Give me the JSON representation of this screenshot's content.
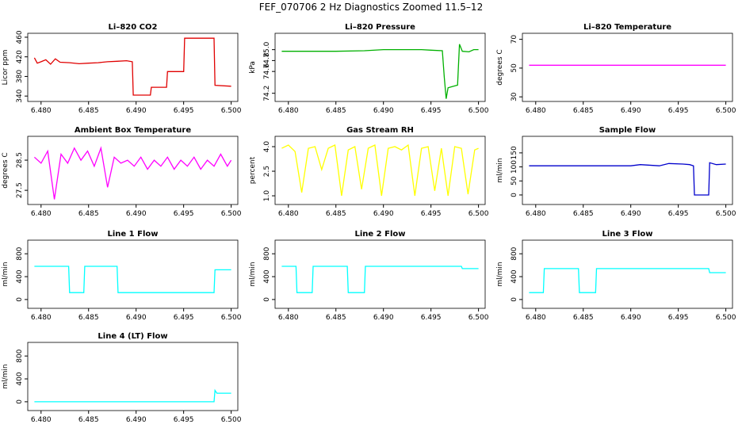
{
  "title": "FEF_070706  2 Hz Diagnostics Zoomed 11.5–12",
  "chart_data": [
    {
      "type": "line",
      "title": "Li–820 CO2",
      "y_label": "Licor ppm",
      "xlim": [
        6.4786,
        6.5007
      ],
      "ylim": [
        329,
        468
      ],
      "xticks": [
        {
          "value": 6.48,
          "label": "6.480"
        },
        {
          "value": 6.485,
          "label": "6.485"
        },
        {
          "value": 6.49,
          "label": "6.490"
        },
        {
          "value": 6.495,
          "label": "6.495"
        },
        {
          "value": 6.5,
          "label": "6.500"
        }
      ],
      "yticks": [
        340,
        380,
        420,
        460
      ],
      "x": [
        6.4793,
        6.4796,
        6.48,
        6.4805,
        6.481,
        6.4815,
        6.482,
        6.483,
        6.484,
        6.485,
        6.486,
        6.487,
        6.488,
        6.489,
        6.4896,
        6.4897,
        6.4915,
        6.4916,
        6.4932,
        6.4933,
        6.495,
        6.4951,
        6.4982,
        6.4983,
        6.5
      ],
      "series": [
        {
          "color": "#e00000",
          "values": [
            418,
            407,
            410,
            414,
            405,
            416,
            409,
            408,
            406,
            407,
            408,
            410,
            411,
            412,
            410,
            342,
            342,
            358,
            358,
            390,
            390,
            458,
            458,
            362,
            360
          ]
        }
      ]
    },
    {
      "type": "line",
      "title": "Li–820 Pressure",
      "y_label": "kPa",
      "xlim": [
        6.4786,
        6.5007
      ],
      "ylim": [
        74.05,
        75.3
      ],
      "xticks": [
        {
          "value": 6.48,
          "label": "6.480"
        },
        {
          "value": 6.485,
          "label": "6.485"
        },
        {
          "value": 6.49,
          "label": "6.490"
        },
        {
          "value": 6.495,
          "label": "6.495"
        },
        {
          "value": 6.5,
          "label": "6.500"
        }
      ],
      "yticks": [
        74.2,
        74.6,
        74.8,
        {
          "value": 75,
          "label": "75.0"
        }
      ],
      "x": [
        6.4793,
        6.481,
        6.485,
        6.488,
        6.49,
        6.494,
        6.495,
        6.4962,
        6.4964,
        6.4966,
        6.4968,
        6.4972,
        6.4978,
        6.498,
        6.4983,
        6.499,
        6.4995,
        6.5
      ],
      "series": [
        {
          "color": "#00b000",
          "values": [
            74.97,
            74.97,
            74.97,
            74.98,
            75.0,
            75.0,
            74.99,
            74.98,
            74.5,
            74.1,
            74.3,
            74.32,
            74.35,
            75.1,
            74.97,
            74.96,
            75.0,
            75.0
          ]
        }
      ]
    },
    {
      "type": "line",
      "title": "Li–820 Temperature",
      "y_label": "degrees C",
      "xlim": [
        6.4786,
        6.5007
      ],
      "ylim": [
        26.8,
        74.2
      ],
      "xticks": [
        {
          "value": 6.48,
          "label": "6.480"
        },
        {
          "value": 6.485,
          "label": "6.485"
        },
        {
          "value": 6.49,
          "label": "6.490"
        },
        {
          "value": 6.495,
          "label": "6.495"
        },
        {
          "value": 6.5,
          "label": "6.500"
        }
      ],
      "yticks": [
        30,
        50,
        70
      ],
      "x": [
        6.4793,
        6.5
      ],
      "series": [
        {
          "color": "#ff00ff",
          "values": [
            52,
            52
          ]
        }
      ]
    },
    {
      "type": "line",
      "title": "Ambient Box Temperature",
      "y_label": "degrees C",
      "xlim": [
        6.4786,
        6.5007
      ],
      "ylim": [
        27.03,
        29.29
      ],
      "xticks": [
        {
          "value": 6.48,
          "label": "6.480"
        },
        {
          "value": 6.485,
          "label": "6.485"
        },
        {
          "value": 6.49,
          "label": "6.490"
        },
        {
          "value": 6.495,
          "label": "6.495"
        },
        {
          "value": 6.5,
          "label": "6.500"
        }
      ],
      "yticks": [
        27.5,
        28.5
      ],
      "x": [
        6.4793,
        6.48,
        6.4807,
        6.4814,
        6.4821,
        6.4828,
        6.4835,
        6.4842,
        6.4849,
        6.4856,
        6.4863,
        6.487,
        6.4877,
        6.4884,
        6.4891,
        6.4898,
        6.4905,
        6.4912,
        6.4919,
        6.4926,
        6.4933,
        6.494,
        6.4947,
        6.4954,
        6.4961,
        6.4968,
        6.4975,
        6.4982,
        6.4989,
        6.4996,
        6.5
      ],
      "series": [
        {
          "color": "#ff00ff",
          "values": [
            28.6,
            28.4,
            28.8,
            27.2,
            28.7,
            28.4,
            28.9,
            28.5,
            28.8,
            28.3,
            28.9,
            27.6,
            28.6,
            28.4,
            28.5,
            28.3,
            28.6,
            28.2,
            28.5,
            28.3,
            28.6,
            28.2,
            28.5,
            28.3,
            28.6,
            28.2,
            28.5,
            28.3,
            28.7,
            28.3,
            28.5
          ]
        }
      ]
    },
    {
      "type": "line",
      "title": "Gas Stream RH",
      "y_label": "percent",
      "xlim": [
        6.4786,
        6.5007
      ],
      "ylim": [
        0.47,
        4.63
      ],
      "xticks": [
        {
          "value": 6.48,
          "label": "6.480"
        },
        {
          "value": 6.485,
          "label": "6.485"
        },
        {
          "value": 6.49,
          "label": "6.490"
        },
        {
          "value": 6.495,
          "label": "6.495"
        },
        {
          "value": 6.5,
          "label": "6.500"
        }
      ],
      "yticks": [
        {
          "value": 1,
          "label": "1.0"
        },
        2.5,
        {
          "value": 4,
          "label": "4.0"
        }
      ],
      "x": [
        6.4793,
        6.48,
        6.4807,
        6.4814,
        6.4821,
        6.4828,
        6.4835,
        6.4842,
        6.4849,
        6.4856,
        6.4863,
        6.487,
        6.4877,
        6.4884,
        6.4891,
        6.4898,
        6.4905,
        6.4912,
        6.4919,
        6.4926,
        6.4933,
        6.494,
        6.4947,
        6.4954,
        6.4961,
        6.4968,
        6.4975,
        6.4982,
        6.4989,
        6.4996,
        6.5
      ],
      "series": [
        {
          "color": "#ffff00",
          "values": [
            3.9,
            4.1,
            3.7,
            1.2,
            3.9,
            4.0,
            2.6,
            3.9,
            4.1,
            1.0,
            3.8,
            4.0,
            1.4,
            3.9,
            4.1,
            1.0,
            3.9,
            4.0,
            3.8,
            4.1,
            1.0,
            3.9,
            4.0,
            1.3,
            3.9,
            1.0,
            4.0,
            3.9,
            1.1,
            3.8,
            3.9
          ]
        }
      ]
    },
    {
      "type": "line",
      "title": "Sample Flow",
      "y_label": "ml/min",
      "xlim": [
        6.4786,
        6.5007
      ],
      "ylim": [
        -34,
        209
      ],
      "xticks": [
        {
          "value": 6.48,
          "label": "6.480"
        },
        {
          "value": 6.485,
          "label": "6.485"
        },
        {
          "value": 6.49,
          "label": "6.490"
        },
        {
          "value": 6.495,
          "label": "6.495"
        },
        {
          "value": 6.5,
          "label": "6.500"
        }
      ],
      "yticks": [
        0,
        50,
        100,
        150
      ],
      "x": [
        6.4793,
        6.485,
        6.49,
        6.491,
        6.493,
        6.494,
        6.4955,
        6.4962,
        6.4966,
        6.4967,
        6.4982,
        6.4983,
        6.499,
        6.5
      ],
      "series": [
        {
          "color": "#0000cc",
          "values": [
            104,
            104,
            104,
            108,
            104,
            112,
            110,
            108,
            104,
            0,
            0,
            115,
            108,
            110
          ]
        }
      ]
    },
    {
      "type": "line",
      "title": "Line 1 Flow",
      "y_label": "ml/min",
      "xlim": [
        6.4786,
        6.5007
      ],
      "ylim": [
        -154,
        1038
      ],
      "xticks": [
        {
          "value": 6.48,
          "label": "6.480"
        },
        {
          "value": 6.485,
          "label": "6.485"
        },
        {
          "value": 6.49,
          "label": "6.490"
        },
        {
          "value": 6.495,
          "label": "6.495"
        },
        {
          "value": 6.5,
          "label": "6.500"
        }
      ],
      "yticks": [
        0,
        400,
        800
      ],
      "x": [
        6.4793,
        6.4829,
        6.483,
        6.4845,
        6.4846,
        6.488,
        6.4881,
        6.4982,
        6.4983,
        6.5
      ],
      "series": [
        {
          "color": "#00ffff",
          "values": [
            580,
            580,
            120,
            120,
            580,
            580,
            120,
            120,
            520,
            520
          ]
        }
      ]
    },
    {
      "type": "line",
      "title": "Line 2 Flow",
      "y_label": "ml/min",
      "xlim": [
        6.4786,
        6.5007
      ],
      "ylim": [
        -154,
        1038
      ],
      "xticks": [
        {
          "value": 6.48,
          "label": "6.480"
        },
        {
          "value": 6.485,
          "label": "6.485"
        },
        {
          "value": 6.49,
          "label": "6.490"
        },
        {
          "value": 6.495,
          "label": "6.495"
        },
        {
          "value": 6.5,
          "label": "6.500"
        }
      ],
      "yticks": [
        0,
        400,
        800
      ],
      "x": [
        6.4793,
        6.4808,
        6.4809,
        6.4825,
        6.4826,
        6.4862,
        6.4863,
        6.488,
        6.4881,
        6.4982,
        6.4983,
        6.5
      ],
      "series": [
        {
          "color": "#00ffff",
          "values": [
            580,
            580,
            120,
            120,
            580,
            580,
            120,
            120,
            580,
            580,
            540,
            540
          ]
        }
      ]
    },
    {
      "type": "line",
      "title": "Line 3 Flow",
      "y_label": "ml/min",
      "xlim": [
        6.4786,
        6.5007
      ],
      "ylim": [
        -154,
        1038
      ],
      "xticks": [
        {
          "value": 6.48,
          "label": "6.480"
        },
        {
          "value": 6.485,
          "label": "6.485"
        },
        {
          "value": 6.49,
          "label": "6.490"
        },
        {
          "value": 6.495,
          "label": "6.495"
        },
        {
          "value": 6.5,
          "label": "6.500"
        }
      ],
      "yticks": [
        0,
        400,
        800
      ],
      "x": [
        6.4793,
        6.4808,
        6.4809,
        6.4845,
        6.4846,
        6.4863,
        6.4864,
        6.4982,
        6.4983,
        6.5
      ],
      "series": [
        {
          "color": "#00ffff",
          "values": [
            120,
            120,
            540,
            540,
            120,
            120,
            540,
            540,
            470,
            470
          ]
        }
      ]
    },
    {
      "type": "line",
      "title": "Line 4 (LT) Flow",
      "y_label": "ml/min",
      "xlim": [
        6.4786,
        6.5007
      ],
      "ylim": [
        -154,
        1038
      ],
      "xticks": [
        {
          "value": 6.48,
          "label": "6.480"
        },
        {
          "value": 6.485,
          "label": "6.485"
        },
        {
          "value": 6.49,
          "label": "6.490"
        },
        {
          "value": 6.495,
          "label": "6.495"
        },
        {
          "value": 6.5,
          "label": "6.500"
        }
      ],
      "yticks": [
        0,
        400,
        800
      ],
      "x": [
        6.4793,
        6.4982,
        6.4983,
        6.4985,
        6.5
      ],
      "series": [
        {
          "color": "#00ffff",
          "values": [
            0,
            0,
            200,
            150,
            150
          ]
        }
      ]
    }
  ]
}
